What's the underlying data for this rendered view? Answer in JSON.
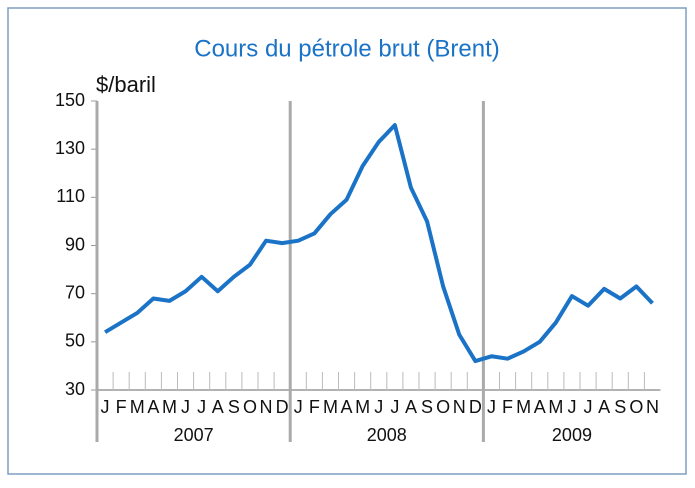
{
  "chart_data": {
    "type": "line",
    "title": "Cours du pétrole brut (Brent)",
    "y_label": "$/baril",
    "categories": [
      "J",
      "F",
      "M",
      "A",
      "M",
      "J",
      "J",
      "A",
      "S",
      "O",
      "N",
      "D",
      "J",
      "F",
      "M",
      "A",
      "M",
      "J",
      "J",
      "A",
      "S",
      "O",
      "N",
      "D",
      "J",
      "F",
      "M",
      "A",
      "M",
      "J",
      "J",
      "A",
      "S",
      "O",
      "N"
    ],
    "years": [
      "2007",
      "2008",
      "2009"
    ],
    "series": [
      {
        "name": "Brent",
        "color": "#1a73c6",
        "values": [
          54,
          58,
          62,
          68,
          67,
          71,
          77,
          71,
          77,
          82,
          92,
          91,
          92,
          95,
          103,
          109,
          123,
          133,
          140,
          114,
          100,
          73,
          53,
          42,
          44,
          43,
          46,
          50,
          58,
          69,
          65,
          72,
          68,
          73,
          66
        ]
      }
    ],
    "ylim": [
      30,
      150
    ],
    "yticks": [
      30,
      50,
      70,
      90,
      110,
      130,
      150
    ]
  }
}
